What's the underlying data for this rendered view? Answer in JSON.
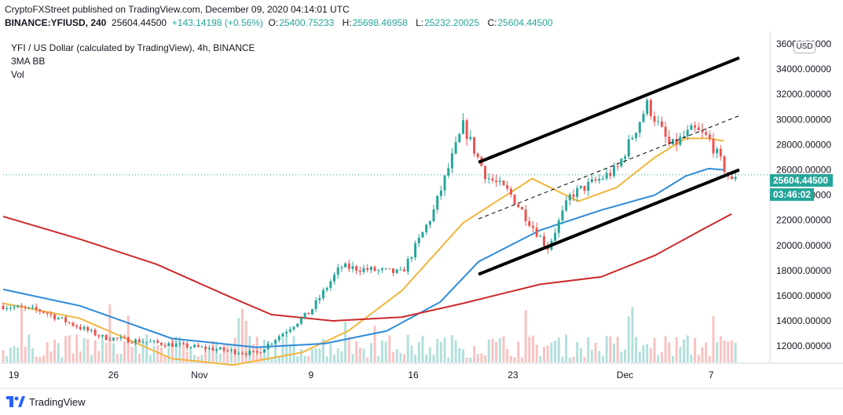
{
  "header": {
    "publisher_line": "CryptoFXStreet published on TradingView.com, December 09, 2020 04:14:01 UTC",
    "symbol_info": "BINANCE:YFIUSD, 240",
    "last_value": "25604.44500",
    "change": "+143.14198 (+0.56%)",
    "open_label": "O:",
    "open": "25400.75233",
    "high_label": "H:",
    "high": "25698.46958",
    "low_label": "L:",
    "low": "25232.20025",
    "close_label": "C:",
    "close": "25604.44500"
  },
  "legend": {
    "title": "YFI / US Dollar (calculated by TradingView), 4h, BINANCE",
    "indicator": "3MA BB",
    "volume": "Vol"
  },
  "price_scale": {
    "currency": "USD",
    "current_price_tag": "25604.44500",
    "countdown": "03:46:02"
  },
  "footer": {
    "brand": "TradingView"
  },
  "colors": {
    "up": "#26a69a",
    "down": "#ef5350",
    "ma_fast": "#f2b53d",
    "ma_mid": "#2e8bd8",
    "ma_slow": "#cc2a2a",
    "channel": "#000000"
  },
  "chart_data": {
    "type": "candlestick",
    "y_ticks": [
      "12000.00000",
      "14000.00000",
      "16000.00000",
      "18000.00000",
      "20000.00000",
      "22000.00000",
      "24000.00000",
      "26000.00000",
      "28000.00000",
      "30000.00000",
      "32000.00000",
      "34000.00000",
      "36000.00000"
    ],
    "x_ticks": [
      "19",
      "26",
      "Nov",
      "9",
      "16",
      "23",
      "Dec",
      "7"
    ],
    "ylim": [
      10700,
      37000
    ],
    "current_price": 25604.445,
    "key_points": [
      {
        "label": "Oct 19",
        "close": 15200
      },
      {
        "label": "Oct 23",
        "close": 14800
      },
      {
        "label": "Oct 28",
        "close": 12700
      },
      {
        "label": "Nov 6",
        "close": 11400
      },
      {
        "label": "Nov 9",
        "close": 14700
      },
      {
        "label": "Nov 12",
        "close": 18300
      },
      {
        "label": "Nov 16",
        "close": 17800
      },
      {
        "label": "Nov 19",
        "close": 22500
      },
      {
        "label": "Nov 20",
        "close": 29500
      },
      {
        "label": "Nov 22",
        "close": 25500
      },
      {
        "label": "Nov 23",
        "close": 24200
      },
      {
        "label": "Nov 26",
        "close": 19800
      },
      {
        "label": "Nov 28",
        "close": 24000
      },
      {
        "label": "Dec 2",
        "close": 26000
      },
      {
        "label": "Dec 3",
        "close": 31200
      },
      {
        "label": "Dec 5",
        "close": 27800
      },
      {
        "label": "Dec 6",
        "close": 29200
      },
      {
        "label": "Dec 7",
        "close": 28500
      },
      {
        "label": "Dec 8",
        "close": 25000
      },
      {
        "label": "Dec 9",
        "close": 25604
      }
    ],
    "moving_averages": [
      {
        "name": "fast",
        "points": [
          [
            0,
            15400
          ],
          [
            0.1,
            14200
          ],
          [
            0.22,
            11000
          ],
          [
            0.3,
            10500
          ],
          [
            0.39,
            11500
          ],
          [
            0.45,
            13200
          ],
          [
            0.52,
            16400
          ],
          [
            0.6,
            21800
          ],
          [
            0.69,
            25300
          ],
          [
            0.75,
            23500
          ],
          [
            0.8,
            24600
          ],
          [
            0.85,
            27000
          ],
          [
            0.89,
            28500
          ],
          [
            0.92,
            28500
          ],
          [
            0.94,
            28300
          ]
        ]
      },
      {
        "name": "mid",
        "points": [
          [
            0,
            16500
          ],
          [
            0.1,
            15200
          ],
          [
            0.22,
            12600
          ],
          [
            0.33,
            11900
          ],
          [
            0.42,
            12200
          ],
          [
            0.5,
            13200
          ],
          [
            0.57,
            15500
          ],
          [
            0.62,
            18700
          ],
          [
            0.7,
            21200
          ],
          [
            0.78,
            22800
          ],
          [
            0.85,
            24000
          ],
          [
            0.89,
            25500
          ],
          [
            0.92,
            26100
          ],
          [
            0.94,
            26000
          ]
        ]
      },
      {
        "name": "slow",
        "points": [
          [
            0,
            22300
          ],
          [
            0.1,
            20500
          ],
          [
            0.2,
            18500
          ],
          [
            0.3,
            15800
          ],
          [
            0.35,
            14500
          ],
          [
            0.43,
            14000
          ],
          [
            0.52,
            14300
          ],
          [
            0.6,
            15400
          ],
          [
            0.7,
            16900
          ],
          [
            0.78,
            17500
          ],
          [
            0.85,
            19200
          ],
          [
            0.91,
            21200
          ],
          [
            0.95,
            22500
          ]
        ]
      }
    ],
    "channel": {
      "upper": [
        [
          0.62,
          26600
        ],
        [
          0.96,
          34900
        ]
      ],
      "lower": [
        [
          0.62,
          17700
        ],
        [
          0.96,
          26000
        ]
      ],
      "mid": [
        [
          0.62,
          22100
        ],
        [
          0.96,
          30300
        ]
      ]
    }
  }
}
